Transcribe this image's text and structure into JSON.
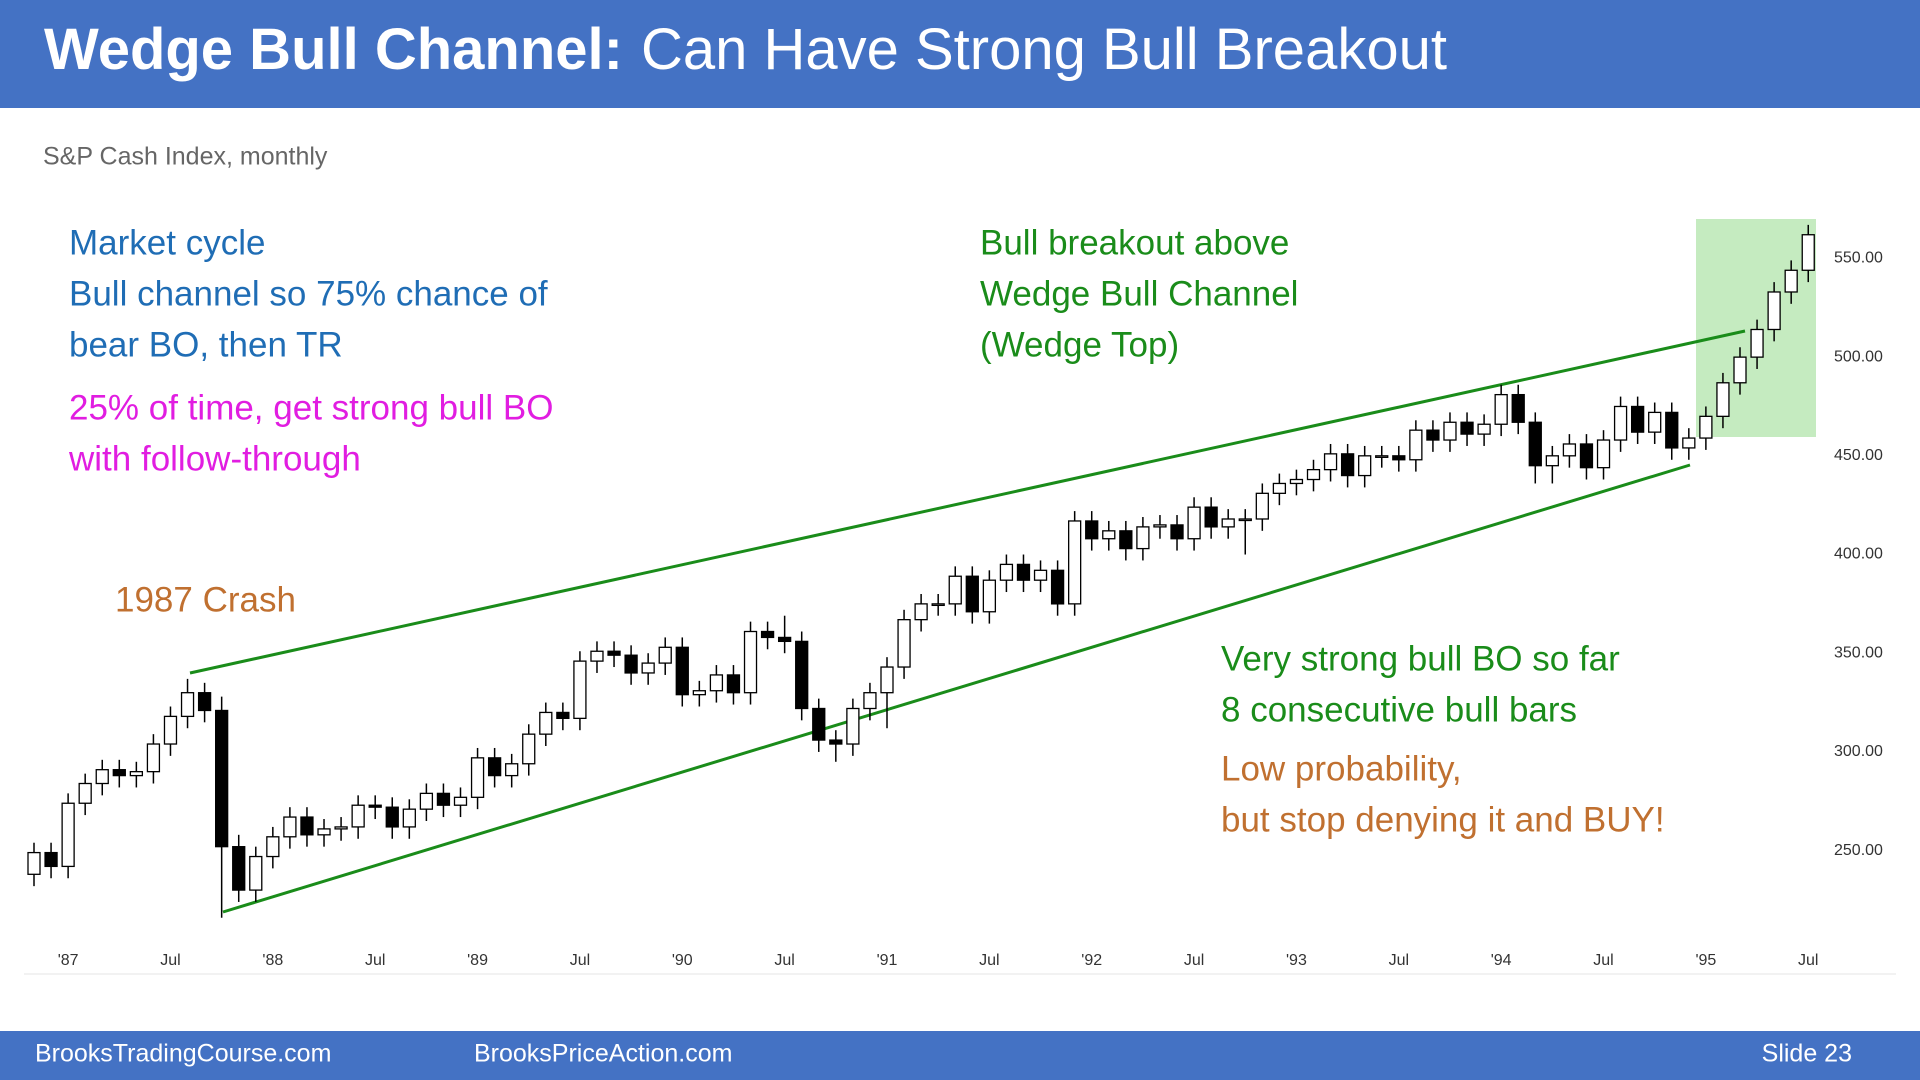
{
  "chart_data": {
    "type": "candlestick",
    "title_bold": "Wedge Bull Channel:",
    "title": "Can Have Strong Bull Breakout",
    "subtitle": "S&P Cash Index, monthly",
    "up_color": "#ffffff",
    "down_color": "#000000",
    "categories": [
      null,
      null,
      "'87",
      null,
      null,
      null,
      null,
      null,
      "Jul",
      null,
      null,
      null,
      null,
      null,
      "'88",
      null,
      null,
      null,
      null,
      null,
      "Jul",
      null,
      null,
      null,
      null,
      null,
      "'89",
      null,
      null,
      null,
      null,
      null,
      "Jul",
      null,
      null,
      null,
      null,
      null,
      "'90",
      null,
      null,
      null,
      null,
      null,
      "Jul",
      null,
      null,
      null,
      null,
      null,
      "'91",
      null,
      null,
      null,
      null,
      null,
      "Jul",
      null,
      null,
      null,
      null,
      null,
      "'92",
      null,
      null,
      null,
      null,
      null,
      "Jul",
      null,
      null,
      null,
      null,
      null,
      "'93",
      null,
      null,
      null,
      null,
      null,
      "Jul",
      null,
      null,
      null,
      null,
      null,
      "'94",
      null,
      null,
      null,
      null,
      null,
      "Jul",
      null,
      null,
      null,
      null,
      null,
      "'95",
      null,
      null,
      null,
      null,
      null,
      "Jul"
    ],
    "open": [
      238,
      249,
      242,
      274,
      284,
      291,
      288,
      290,
      304,
      318,
      330,
      321,
      252,
      230,
      247,
      257,
      267,
      258,
      261,
      262,
      273,
      272,
      262,
      271,
      279,
      273,
      277,
      297,
      288,
      294,
      309,
      320,
      317,
      346,
      351,
      349,
      340,
      345,
      353,
      329,
      331,
      339,
      330,
      361,
      358,
      356,
      322,
      306,
      304,
      322,
      330,
      343,
      367,
      375,
      375,
      389,
      371,
      387,
      395,
      387,
      392,
      375,
      417,
      408,
      412,
      403,
      414,
      415,
      408,
      424,
      414,
      418,
      418,
      431,
      436,
      438,
      443,
      451,
      440,
      450,
      450,
      448,
      463,
      458,
      467,
      461,
      466,
      481,
      467,
      445,
      450,
      456,
      444,
      458,
      475,
      462,
      472,
      454,
      459,
      470,
      487,
      500,
      514,
      533,
      544
    ],
    "high": [
      254,
      254,
      279,
      289,
      296,
      296,
      295,
      309,
      323,
      337,
      335,
      328,
      258,
      252,
      262,
      272,
      272,
      266,
      267,
      278,
      278,
      277,
      276,
      284,
      284,
      282,
      302,
      302,
      299,
      314,
      325,
      325,
      351,
      356,
      356,
      354,
      350,
      358,
      358,
      336,
      344,
      344,
      366,
      366,
      369,
      361,
      327,
      311,
      327,
      335,
      348,
      372,
      380,
      380,
      394,
      394,
      392,
      400,
      400,
      397,
      397,
      422,
      422,
      417,
      417,
      419,
      420,
      420,
      429,
      429,
      423,
      423,
      436,
      441,
      443,
      448,
      456,
      456,
      455,
      455,
      455,
      468,
      468,
      472,
      472,
      471,
      486,
      486,
      472,
      455,
      461,
      461,
      463,
      480,
      480,
      477,
      477,
      464,
      475,
      492,
      505,
      519,
      538,
      549,
      567
    ],
    "low": [
      232,
      236,
      236,
      268,
      278,
      282,
      282,
      284,
      298,
      312,
      315,
      216,
      224,
      224,
      241,
      251,
      252,
      252,
      255,
      256,
      266,
      256,
      256,
      265,
      267,
      267,
      271,
      282,
      282,
      288,
      303,
      311,
      311,
      340,
      343,
      334,
      334,
      339,
      323,
      323,
      325,
      324,
      324,
      352,
      350,
      316,
      300,
      295,
      298,
      316,
      312,
      337,
      361,
      369,
      369,
      365,
      365,
      381,
      381,
      381,
      369,
      369,
      402,
      402,
      397,
      397,
      408,
      402,
      402,
      408,
      408,
      400,
      412,
      425,
      430,
      432,
      437,
      434,
      434,
      444,
      442,
      442,
      452,
      452,
      455,
      455,
      460,
      461,
      436,
      436,
      444,
      438,
      438,
      452,
      456,
      456,
      448,
      448,
      453,
      464,
      481,
      494,
      508,
      527,
      538
    ],
    "close": [
      249,
      242,
      274,
      284,
      291,
      288,
      290,
      304,
      318,
      330,
      321,
      252,
      230,
      247,
      257,
      267,
      258,
      261,
      262,
      273,
      272,
      262,
      271,
      279,
      273,
      277,
      297,
      288,
      294,
      309,
      320,
      317,
      346,
      351,
      349,
      340,
      345,
      353,
      329,
      331,
      339,
      330,
      361,
      358,
      356,
      322,
      306,
      304,
      322,
      330,
      343,
      367,
      375,
      375,
      389,
      371,
      387,
      395,
      387,
      392,
      375,
      417,
      408,
      412,
      403,
      414,
      415,
      408,
      424,
      414,
      418,
      418,
      431,
      436,
      438,
      443,
      451,
      440,
      450,
      450,
      448,
      463,
      458,
      467,
      461,
      466,
      481,
      467,
      445,
      450,
      456,
      444,
      458,
      475,
      462,
      472,
      454,
      459,
      470,
      487,
      500,
      514,
      533,
      544,
      562
    ],
    "ylim": [
      188,
      572
    ],
    "yticks": [
      {
        "value": 250,
        "label": "250.00"
      },
      {
        "value": 300,
        "label": "300.00"
      },
      {
        "value": 350,
        "label": "350.00"
      },
      {
        "value": 400,
        "label": "400.00"
      },
      {
        "value": 450,
        "label": "450.00"
      },
      {
        "value": 500,
        "label": "500.00"
      },
      {
        "value": 550,
        "label": "550.00"
      }
    ],
    "annotations": [
      {
        "lines": [
          "Market cycle",
          "Bull channel so 75% chance of",
          "bear BO, then TR"
        ],
        "color": "#1f6db5"
      },
      {
        "lines": [
          "25% of time, get strong bull BO",
          "with follow-through"
        ],
        "color": "#e11de1"
      },
      {
        "lines": [
          "1987 Crash"
        ],
        "color": "#c07030"
      },
      {
        "lines": [
          "Bull breakout above",
          "Wedge Bull Channel",
          "(Wedge Top)"
        ],
        "color": "#1a8c1a"
      },
      {
        "lines": [
          "Very strong bull BO so far",
          "8 consecutive bull bars"
        ],
        "color": "#1a8c1a"
      },
      {
        "lines": [
          "Low probability,",
          "but stop denying it and BUY!"
        ],
        "color": "#c07030"
      }
    ]
  },
  "footer": {
    "left": "BrooksTradingCourse.com",
    "center": "BrooksPriceAction.com",
    "right": "Slide  23"
  }
}
